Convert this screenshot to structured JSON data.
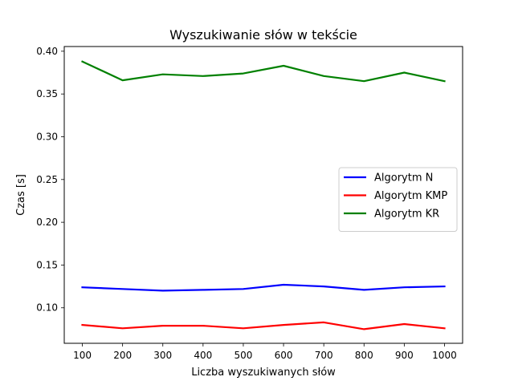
{
  "chart_data": {
    "type": "line",
    "title": "Wyszukiwanie słów w tekście",
    "xlabel": "Liczba wyszukiwanych słów",
    "ylabel": "Czas [s]",
    "x": [
      100,
      200,
      300,
      400,
      500,
      600,
      700,
      800,
      900,
      1000
    ],
    "x_ticks": [
      "100",
      "200",
      "300",
      "400",
      "500",
      "600",
      "700",
      "800",
      "900",
      "1000"
    ],
    "y_ticks": [
      "0.10",
      "0.15",
      "0.20",
      "0.25",
      "0.30",
      "0.35",
      "0.40"
    ],
    "y_tick_values": [
      0.1,
      0.15,
      0.2,
      0.25,
      0.3,
      0.35,
      0.4
    ],
    "xlim": [
      55,
      1045
    ],
    "ylim": [
      0.0585,
      0.4055
    ],
    "grid": false,
    "legend_position": "center-right",
    "series": [
      {
        "name": "Algorytm N",
        "color": "#0000ff",
        "values": [
          0.124,
          0.122,
          0.12,
          0.121,
          0.122,
          0.127,
          0.125,
          0.121,
          0.124,
          0.125
        ]
      },
      {
        "name": "Algorytm KMP",
        "color": "#ff0000",
        "values": [
          0.08,
          0.076,
          0.079,
          0.079,
          0.076,
          0.08,
          0.083,
          0.075,
          0.081,
          0.076
        ]
      },
      {
        "name": "Algorytm KR",
        "color": "#008000",
        "values": [
          0.388,
          0.366,
          0.373,
          0.371,
          0.374,
          0.383,
          0.371,
          0.365,
          0.375,
          0.365
        ]
      }
    ]
  }
}
